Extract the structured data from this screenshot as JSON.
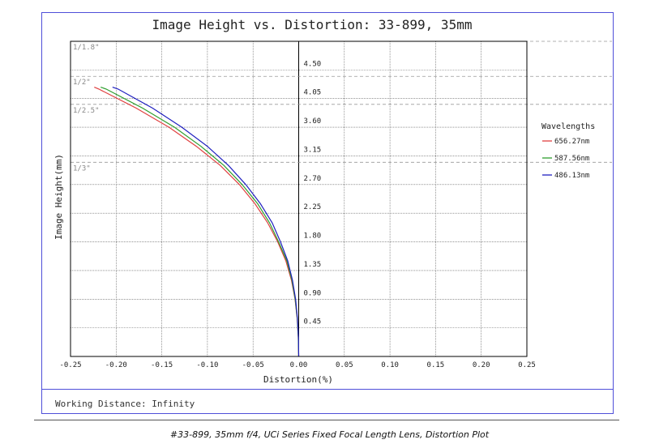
{
  "chart_data": {
    "type": "line",
    "title": "Image Height vs. Distortion: 33-899, 35mm",
    "xlabel": "Distortion(%)",
    "ylabel": "Image Height(mm)",
    "xlim": [
      -0.25,
      0.25
    ],
    "ylim": [
      0,
      4.95
    ],
    "x_ticks": [
      "-0.25",
      "-0.20",
      "-0.15",
      "-0.10",
      "-0.05",
      "0.00",
      "0.05",
      "0.10",
      "0.15",
      "0.20",
      "0.25"
    ],
    "y_ticks": [
      {
        "value": 0.45,
        "label": "0.45"
      },
      {
        "value": 0.9,
        "label": "0.90"
      },
      {
        "value": 1.35,
        "label": "1.35"
      },
      {
        "value": 1.8,
        "label": "1.80"
      },
      {
        "value": 2.25,
        "label": "2.25"
      },
      {
        "value": 2.7,
        "label": "2.70"
      },
      {
        "value": 3.15,
        "label": "3.15"
      },
      {
        "value": 3.6,
        "label": "3.60"
      },
      {
        "value": 4.05,
        "label": "4.05"
      },
      {
        "value": 4.5,
        "label": "4.50"
      }
    ],
    "sensor_markers": [
      {
        "label": "1/3\"",
        "value": 3.05
      },
      {
        "label": "1/2.5\"",
        "value": 3.96
      },
      {
        "label": "1/2\"",
        "value": 4.4
      },
      {
        "label": "1/1.8\"",
        "value": 4.95
      }
    ],
    "grid": true,
    "legend_title": "Wavelengths",
    "legend_position": "right",
    "series": [
      {
        "name": "656.27nm",
        "color": "#e04040",
        "x": [
          0,
          -0.0004,
          -0.0017,
          -0.004,
          -0.008,
          -0.014,
          -0.023,
          -0.034,
          -0.048,
          -0.065,
          -0.086,
          -0.112,
          -0.142,
          -0.178,
          -0.219,
          -0.224
        ],
        "y": [
          0,
          0.3,
          0.6,
          0.9,
          1.2,
          1.5,
          1.8,
          2.1,
          2.4,
          2.7,
          3.0,
          3.3,
          3.6,
          3.9,
          4.2,
          4.23
        ]
      },
      {
        "name": "587.56nm",
        "color": "#2e9e2e",
        "x": [
          0,
          -0.0004,
          -0.0016,
          -0.0038,
          -0.0075,
          -0.013,
          -0.022,
          -0.032,
          -0.045,
          -0.062,
          -0.082,
          -0.107,
          -0.136,
          -0.171,
          -0.211,
          -0.217
        ],
        "y": [
          0,
          0.3,
          0.6,
          0.9,
          1.2,
          1.5,
          1.8,
          2.1,
          2.4,
          2.7,
          3.0,
          3.3,
          3.6,
          3.9,
          4.2,
          4.23
        ]
      },
      {
        "name": "486.13nm",
        "color": "#2020c0",
        "x": [
          0,
          -0.0003,
          -0.0014,
          -0.0034,
          -0.0068,
          -0.012,
          -0.02,
          -0.029,
          -0.042,
          -0.058,
          -0.077,
          -0.1,
          -0.128,
          -0.16,
          -0.198,
          -0.204
        ],
        "y": [
          0,
          0.3,
          0.6,
          0.9,
          1.2,
          1.5,
          1.8,
          2.1,
          2.4,
          2.7,
          3.0,
          3.3,
          3.6,
          3.9,
          4.2,
          4.23
        ]
      }
    ]
  },
  "footer": {
    "working_distance": "Working Distance: Infinity"
  },
  "caption": "#33-899, 35mm f/4, UCi Series Fixed Focal Length Lens, Distortion Plot"
}
